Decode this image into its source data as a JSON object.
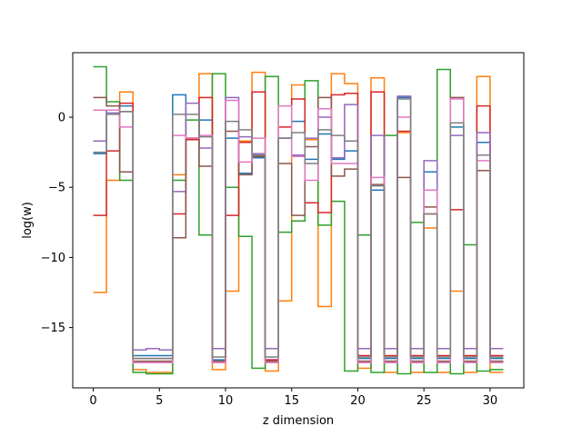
{
  "chart_data": {
    "type": "line",
    "step": "post",
    "title": "",
    "xlabel": "z dimension",
    "ylabel": "log(w)",
    "xlim": [
      -1.55,
      32.55
    ],
    "ylim": [
      -19.3,
      4.6
    ],
    "xticks": [
      0,
      5,
      10,
      15,
      20,
      25,
      30
    ],
    "xtick_labels": [
      "0",
      "5",
      "10",
      "15",
      "20",
      "25",
      "30"
    ],
    "yticks": [
      -15,
      -10,
      -5,
      0
    ],
    "ytick_labels": [
      "−15",
      "−10",
      "−5",
      "0"
    ],
    "grid": false,
    "legend": false,
    "x": [
      0,
      1,
      2,
      3,
      4,
      5,
      6,
      7,
      8,
      9,
      10,
      11,
      12,
      13,
      14,
      15,
      16,
      17,
      18,
      19,
      20,
      21,
      22,
      23,
      24,
      25,
      26,
      27,
      28,
      29,
      30,
      31
    ],
    "series": [
      {
        "color": "#1f77b4",
        "values": [
          -2.6,
          0.5,
          0.8,
          -17.0,
          -17.0,
          -17.0,
          1.6,
          -1.5,
          -0.2,
          -17.3,
          -1.5,
          -4.0,
          -2.9,
          -17.3,
          -1.5,
          -0.3,
          -3.0,
          -1.2,
          -3.0,
          -2.4,
          -17.2,
          -5.2,
          -17.2,
          1.4,
          -17.2,
          -3.9,
          -17.2,
          -0.7,
          -17.2,
          -1.8,
          -17.2,
          -17.2
        ]
      },
      {
        "color": "#ff7f0e",
        "values": [
          -12.5,
          -4.5,
          1.8,
          -18.0,
          -18.2,
          -18.2,
          -4.1,
          -1.5,
          3.1,
          -18.0,
          -12.4,
          -1.7,
          3.2,
          -18.1,
          -13.1,
          2.3,
          -1.6,
          -13.5,
          3.1,
          2.4,
          -17.9,
          2.8,
          -18.2,
          -1.1,
          -18.2,
          -7.9,
          -18.2,
          -12.4,
          -18.2,
          2.9,
          -18.2,
          -18.2
        ]
      },
      {
        "color": "#2ca02c",
        "values": [
          3.6,
          1.1,
          -4.5,
          -18.2,
          -18.3,
          -18.3,
          -4.5,
          -0.2,
          -8.4,
          3.1,
          -5.0,
          -8.5,
          -17.9,
          2.9,
          -8.2,
          -7.4,
          2.6,
          -7.7,
          -6.0,
          -18.1,
          -8.4,
          -18.2,
          -1.3,
          -18.3,
          -7.5,
          -18.2,
          3.4,
          -18.3,
          -9.1,
          -18.1,
          -18.0,
          -18.0
        ]
      },
      {
        "color": "#d62728",
        "values": [
          -7.0,
          -2.4,
          1.0,
          -17.2,
          -17.2,
          -17.2,
          -6.9,
          -1.6,
          1.4,
          -17.5,
          -7.0,
          -1.8,
          1.8,
          -17.3,
          -0.7,
          1.3,
          -6.1,
          -6.8,
          1.6,
          1.7,
          -17.0,
          1.8,
          -17.0,
          -1.0,
          -17.0,
          -6.9,
          -17.0,
          -6.6,
          -17.0,
          0.8,
          -17.0,
          -17.0
        ]
      },
      {
        "color": "#9467bd",
        "values": [
          -1.7,
          0.3,
          0.4,
          -16.6,
          -16.5,
          -16.6,
          -5.3,
          1.0,
          -2.2,
          -16.5,
          1.4,
          -1.4,
          -2.6,
          -16.5,
          -1.5,
          -2.7,
          -1.5,
          0.0,
          -2.9,
          0.9,
          -16.5,
          -1.3,
          -16.5,
          1.5,
          -16.5,
          -3.1,
          -16.5,
          -1.3,
          -16.5,
          -1.1,
          -16.5,
          -16.5
        ]
      },
      {
        "color": "#8c564b",
        "values": [
          1.4,
          0.8,
          -3.9,
          -17.4,
          -17.4,
          -17.4,
          -8.6,
          -1.5,
          -3.5,
          -17.4,
          -1.0,
          -4.1,
          -2.8,
          -17.4,
          -3.3,
          -7.0,
          -2.1,
          1.4,
          -4.2,
          -3.7,
          -17.4,
          -4.8,
          -17.4,
          -4.3,
          -17.4,
          -6.4,
          -17.4,
          1.4,
          -17.4,
          -3.8,
          -17.4,
          -17.4
        ]
      },
      {
        "color": "#e377c2",
        "values": [
          0.5,
          0.5,
          -0.7,
          -17.5,
          -17.5,
          -17.5,
          -1.3,
          -1.5,
          -1.3,
          -17.5,
          1.2,
          -3.2,
          -1.5,
          -17.5,
          0.8,
          -2.8,
          -4.5,
          0.6,
          -3.3,
          -3.3,
          -17.5,
          -4.3,
          -17.5,
          0.0,
          -17.5,
          -5.2,
          -17.5,
          1.3,
          -17.5,
          -3.1,
          -17.5,
          -17.5
        ]
      },
      {
        "color": "#7f7f7f",
        "values": [
          -2.5,
          0.2,
          0.4,
          -17.2,
          -17.2,
          -17.2,
          0.2,
          0.2,
          -1.4,
          -17.1,
          -0.3,
          -0.9,
          -2.7,
          -17.1,
          -1.5,
          -1.1,
          -3.3,
          -0.9,
          -1.3,
          -1.7,
          -17.1,
          -4.9,
          -17.1,
          1.3,
          -17.1,
          -6.9,
          -17.1,
          -0.4,
          -17.1,
          -2.7,
          -17.1,
          -17.1
        ]
      }
    ]
  }
}
